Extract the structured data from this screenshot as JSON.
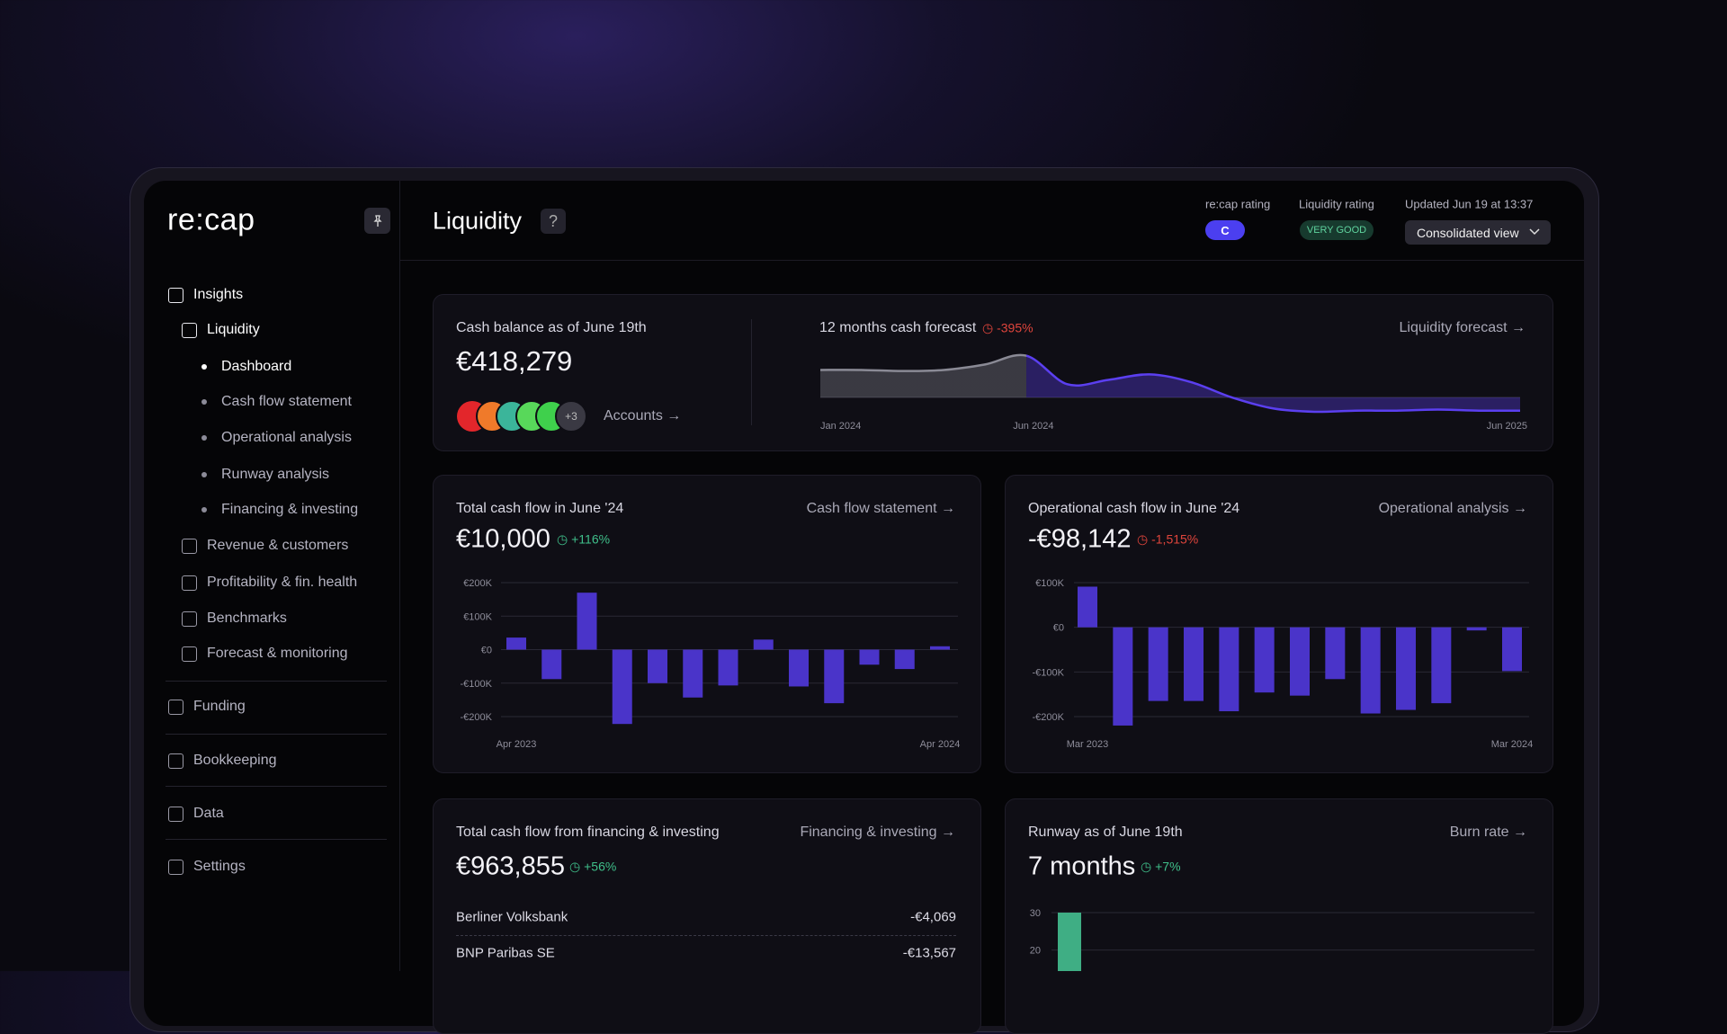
{
  "brand": "re:cap",
  "nav": [
    "Insights",
    "Liquidity",
    "Dashboard",
    "Cash flow statement",
    "Operational analysis",
    "Runway analysis",
    "Financing & investing",
    "Revenue & customers",
    "Profitability & fin. health",
    "Benchmarks",
    "Forecast & monitoring",
    "Funding",
    "Bookkeeping",
    "Data",
    "Settings"
  ],
  "header": {
    "title": "Liquidity",
    "help": "?",
    "recap_rating_label": "re:cap rating",
    "recap_rating": "C",
    "liquidity_rating_label": "Liquidity rating",
    "liquidity_rating": "VERY GOOD",
    "updated": "Updated Jun 19 at 13:37",
    "view": "Consolidated view"
  },
  "cash_balance": {
    "label": "Cash balance as of June 19th",
    "value": "€418,279",
    "accounts_extra": "+3",
    "accounts_link": "Accounts"
  },
  "financing": {
    "title": "Total cash flow from financing & investing",
    "value": "€963,855",
    "change": "+56%",
    "change_color": "#3fbf8a",
    "link": "Financing & investing",
    "rows": [
      [
        "Berliner Volksbank",
        "-€4,069"
      ],
      [
        "BNP Paribas SE",
        "-€13,567"
      ]
    ]
  },
  "chart_data": [
    {
      "type": "area",
      "title": "12 months cash forecast",
      "change": "-395%",
      "change_color": "#e0453c",
      "link": "Liquidity forecast",
      "categories": [
        "Jan 2024",
        null,
        null,
        null,
        null,
        "Jun 2024",
        null,
        null,
        null,
        null,
        null,
        null,
        null,
        null,
        null,
        null,
        null,
        "Jun 2025"
      ],
      "values": [
        25,
        25,
        24,
        25,
        30,
        38,
        12,
        16,
        21,
        14,
        0,
        -10,
        -13,
        -12,
        -12,
        -11,
        -12,
        -12
      ],
      "colors": [
        "#8a8a95",
        "#5b3ff0"
      ],
      "ylim": [
        -20,
        45
      ]
    },
    {
      "type": "bar",
      "title": "Total cash flow in June '24",
      "headline": "€10,000",
      "change": "+116%",
      "change_color": "#3fbf8a",
      "link": "Cash flow statement",
      "categories": [
        "Apr 2023",
        null,
        null,
        null,
        null,
        null,
        null,
        null,
        null,
        null,
        null,
        null,
        "Apr 2024"
      ],
      "values": [
        36000,
        -88000,
        170000,
        -222000,
        -100000,
        -143000,
        -107000,
        30000,
        -110000,
        -160000,
        -45000,
        -58000,
        10000
      ],
      "color": "#4a34c9",
      "ylim": [
        -200000,
        200000
      ],
      "yticks": [
        {
          "value": 200000,
          "label": "€200K"
        },
        {
          "value": 100000,
          "label": "€100K"
        },
        {
          "value": 0,
          "label": "€0"
        },
        {
          "value": -100000,
          "label": "-€100K"
        },
        {
          "value": -200000,
          "label": "-€200K"
        }
      ],
      "grid": true
    },
    {
      "type": "bar",
      "title": "Operational cash flow in June '24",
      "headline": "-€98,142",
      "change": "-1,515%",
      "change_color": "#e0453c",
      "link": "Operational analysis",
      "categories": [
        "Mar 2023",
        null,
        null,
        null,
        null,
        null,
        null,
        null,
        null,
        null,
        null,
        null,
        "Mar 2024"
      ],
      "values": [
        91000,
        -220000,
        -165000,
        -165000,
        -188000,
        -146000,
        -153000,
        -116000,
        -193000,
        -185000,
        -170000,
        -7000,
        -98142
      ],
      "color": "#4a34c9",
      "ylim": [
        -200000,
        100000
      ],
      "yticks": [
        {
          "value": 100000,
          "label": "€100K"
        },
        {
          "value": 0,
          "label": "€0"
        },
        {
          "value": -100000,
          "label": "-€100K"
        },
        {
          "value": -200000,
          "label": "-€200K"
        }
      ],
      "grid": true
    },
    {
      "type": "bar",
      "title": "Runway as of June 19th",
      "headline": "7 months",
      "change": "+7%",
      "change_color": "#3fbf8a",
      "link": "Burn rate",
      "categories": [
        null
      ],
      "values": [
        30
      ],
      "color": "#3fae84",
      "ylim": [
        0,
        30
      ],
      "yticks": [
        30,
        20
      ],
      "grid": true
    }
  ]
}
